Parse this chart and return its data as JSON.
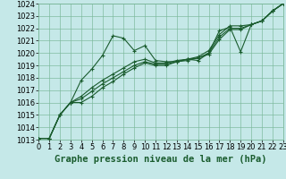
{
  "xlabel": "Graphe pression niveau de la mer (hPa)",
  "background_color": "#c5e8e8",
  "grid_color": "#7ab89a",
  "line_color": "#1a5c2e",
  "marker_color": "#1a5c2e",
  "xlim": [
    0,
    23
  ],
  "ylim": [
    1013,
    1024
  ],
  "xticks": [
    0,
    1,
    2,
    3,
    4,
    5,
    6,
    7,
    8,
    9,
    10,
    11,
    12,
    13,
    14,
    15,
    16,
    17,
    18,
    19,
    20,
    21,
    22,
    23
  ],
  "yticks": [
    1013,
    1014,
    1015,
    1016,
    1017,
    1018,
    1019,
    1020,
    1021,
    1022,
    1023,
    1024
  ],
  "series": [
    [
      1013.1,
      1013.1,
      1015.0,
      1016.0,
      1017.8,
      1018.7,
      1019.8,
      1021.4,
      1021.2,
      1020.2,
      1020.6,
      1019.4,
      1019.3,
      1019.3,
      1019.5,
      1019.4,
      1020.0,
      1021.8,
      1022.1,
      1020.1,
      1022.3,
      1022.6,
      1023.4,
      1024.0
    ],
    [
      1013.1,
      1013.1,
      1015.0,
      1016.0,
      1016.5,
      1017.2,
      1017.8,
      1018.3,
      1018.8,
      1019.3,
      1019.5,
      1019.2,
      1019.2,
      1019.4,
      1019.5,
      1019.7,
      1020.2,
      1021.5,
      1022.2,
      1022.2,
      1022.3,
      1022.6,
      1023.4,
      1024.0
    ],
    [
      1013.1,
      1013.1,
      1015.0,
      1016.0,
      1016.3,
      1016.9,
      1017.5,
      1018.0,
      1018.5,
      1019.0,
      1019.3,
      1019.1,
      1019.1,
      1019.3,
      1019.5,
      1019.6,
      1020.0,
      1021.3,
      1022.0,
      1022.0,
      1022.3,
      1022.6,
      1023.4,
      1024.0
    ],
    [
      1013.1,
      1013.1,
      1015.0,
      1016.0,
      1016.0,
      1016.5,
      1017.2,
      1017.7,
      1018.3,
      1018.8,
      1019.2,
      1019.0,
      1019.0,
      1019.3,
      1019.4,
      1019.6,
      1019.9,
      1021.1,
      1021.9,
      1021.9,
      1022.3,
      1022.6,
      1023.4,
      1024.0
    ]
  ],
  "label_fontsize": 7.5,
  "tick_fontsize": 6.0
}
